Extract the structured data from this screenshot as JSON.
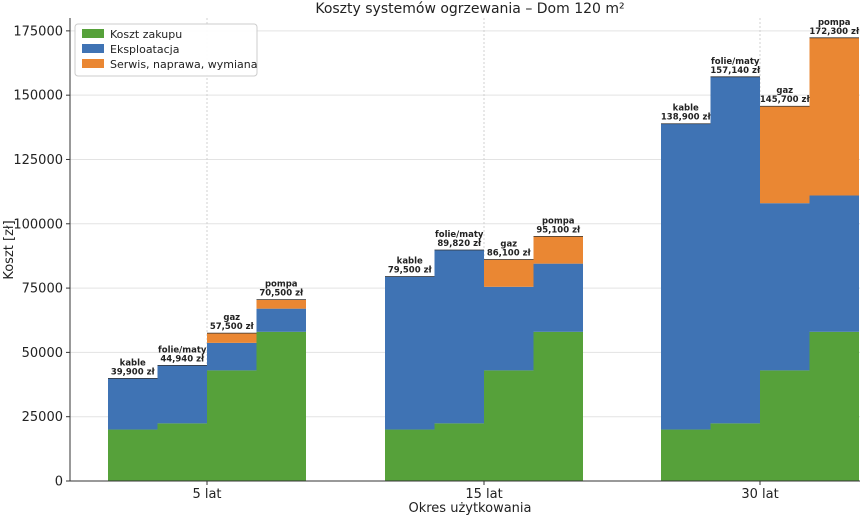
{
  "chart_data": {
    "type": "bar",
    "stacked": true,
    "title": "Koszty systemów ogrzewania – Dom 120 m²",
    "xlabel": "Okres użytkowania",
    "ylabel": "Koszt [zł]",
    "ylim": [
      0,
      180000
    ],
    "yticks": [
      0,
      25000,
      50000,
      75000,
      100000,
      125000,
      150000,
      175000
    ],
    "categories": [
      "5 lat",
      "15 lat",
      "30 lat"
    ],
    "systems": [
      "kable",
      "folie/maty",
      "gaz",
      "pompa"
    ],
    "series": [
      {
        "name": "Koszt zakupu",
        "color": "#56a13a",
        "values": [
          [
            20000,
            22400,
            43000,
            58000
          ],
          [
            20000,
            22400,
            43000,
            58000
          ],
          [
            20000,
            22400,
            43000,
            58000
          ]
        ]
      },
      {
        "name": "Eksploatacja",
        "color": "#3f73b4",
        "values": [
          [
            19900,
            22540,
            10700,
            9000
          ],
          [
            59500,
            67420,
            32500,
            26500
          ],
          [
            118900,
            134740,
            65000,
            53000
          ]
        ]
      },
      {
        "name": "Serwis, naprawa, wymiana",
        "color": "#ea8733",
        "values": [
          [
            0,
            0,
            3800,
            3500
          ],
          [
            0,
            0,
            10600,
            10600
          ],
          [
            0,
            0,
            37700,
            61300
          ]
        ]
      }
    ],
    "bar_labels": [
      [
        "39,900 zł",
        "44,940 zł",
        "57,500 zł",
        "70,500 zł"
      ],
      [
        "79,500 zł",
        "89,820 zł",
        "86,100 zł",
        "95,100 zł"
      ],
      [
        "138,900 zł",
        "157,140 zł",
        "145,700 zł",
        "172,300 zł"
      ]
    ],
    "legend_position": "top-left",
    "grid": true
  }
}
